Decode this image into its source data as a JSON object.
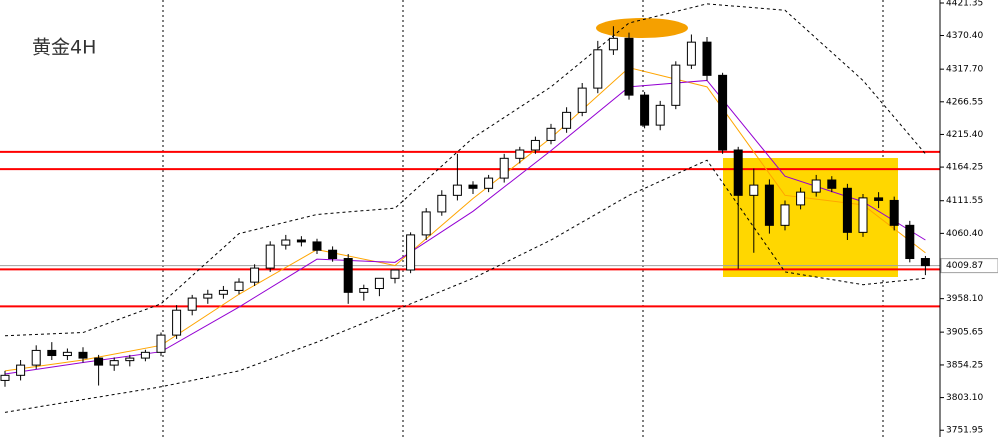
{
  "chart_data": {
    "type": "candlestick",
    "title": "黄金4H",
    "ylim": [
      3741.35,
      4426.05
    ],
    "yticks": [
      4421.35,
      {
        "value": 4370.4,
        "label": "4370.40"
      },
      {
        "value": 4317.7,
        "label": "4317.70"
      },
      4266.55,
      {
        "value": 4215.4,
        "label": "4215.40"
      },
      4164.25,
      4111.55,
      {
        "value": 4060.4,
        "label": "4060.40"
      },
      {
        "value": 3958.1,
        "label": "3958.10"
      },
      3905.65,
      3854.25,
      {
        "value": 3803.1,
        "label": "3803.10"
      },
      3751.95
    ],
    "current_price": 4009.87,
    "levels": [
      4188,
      4161,
      4004,
      3946
    ],
    "level_color": "#ff0000",
    "bull_color": "#ffffff",
    "bear_color": "#000000",
    "open": [
      3830,
      3838,
      3854,
      3877,
      3869,
      3874,
      3865,
      3854,
      3861,
      3865,
      3874,
      3901,
      3940,
      3959,
      3965,
      3971,
      3984,
      4006,
      4042,
      4050,
      4047,
      4034,
      4021,
      3968,
      3974,
      3990,
      4003,
      4058,
      4094,
      4120,
      4136,
      4131,
      4147,
      4178,
      4191,
      4206,
      4225,
      4250,
      4288,
      4348,
      4366,
      4277,
      4230,
      4261,
      4324,
      4360,
      4308,
      4191,
      4120,
      4136,
      4073,
      4105,
      4125,
      4144,
      4131,
      4062,
      4116,
      4112,
      4073,
      4021
    ],
    "high": [
      3845,
      3862,
      3885,
      3890,
      3880,
      3882,
      3870,
      3866,
      3870,
      3878,
      3905,
      3948,
      3964,
      3972,
      3978,
      3990,
      4012,
      4048,
      4058,
      4056,
      4052,
      4040,
      4028,
      3980,
      3985,
      3998,
      4062,
      4100,
      4128,
      4185,
      4142,
      4152,
      4185,
      4196,
      4212,
      4232,
      4258,
      4296,
      4362,
      4385,
      4375,
      4282,
      4268,
      4330,
      4372,
      4368,
      4312,
      4196,
      4162,
      4145,
      4112,
      4132,
      4152,
      4150,
      4138,
      4122,
      4125,
      4118,
      4080,
      4025
    ],
    "low": [
      3820,
      3830,
      3848,
      3862,
      3862,
      3858,
      3822,
      3845,
      3852,
      3860,
      3868,
      3895,
      3932,
      3950,
      3958,
      3965,
      3978,
      4000,
      4035,
      4040,
      4028,
      4016,
      3950,
      3955,
      3962,
      3982,
      3998,
      4050,
      4088,
      4112,
      4122,
      4125,
      4140,
      4170,
      4185,
      4200,
      4218,
      4244,
      4280,
      4340,
      4270,
      4225,
      4222,
      4255,
      4318,
      4300,
      4185,
      4005,
      4030,
      4060,
      4065,
      4098,
      4118,
      4125,
      4050,
      4055,
      4100,
      4065,
      4015,
      3995
    ],
    "close": [
      3838,
      3854,
      3877,
      3869,
      3874,
      3865,
      3854,
      3861,
      3865,
      3874,
      3901,
      3940,
      3959,
      3965,
      3971,
      3984,
      4006,
      4042,
      4050,
      4047,
      4034,
      4021,
      3968,
      3974,
      3990,
      4003,
      4058,
      4094,
      4120,
      4136,
      4131,
      4147,
      4178,
      4191,
      4206,
      4225,
      4250,
      4288,
      4348,
      4366,
      4277,
      4230,
      4261,
      4324,
      4360,
      4308,
      4191,
      4120,
      4136,
      4073,
      4105,
      4125,
      4144,
      4131,
      4062,
      4116,
      4112,
      4073,
      4021,
      4009.87
    ],
    "lines": [
      {
        "color": "#ffa500",
        "dashed": false,
        "x": [
          0,
          5,
          10,
          15,
          20,
          25,
          30,
          35,
          40,
          45,
          50,
          55,
          59
        ],
        "values": [
          3845,
          3862,
          3885,
          3965,
          4035,
          4010,
          4115,
          4210,
          4320,
          4290,
          4120,
          4105,
          4030
        ]
      },
      {
        "color": "#9400d3",
        "dashed": false,
        "x": [
          0,
          5,
          10,
          15,
          20,
          25,
          30,
          35,
          40,
          45,
          50,
          55,
          59
        ],
        "values": [
          3840,
          3858,
          3875,
          3945,
          4020,
          4015,
          4095,
          4190,
          4290,
          4300,
          4150,
          4110,
          4050
        ]
      },
      {
        "color": "#000000",
        "dashed": true,
        "x": [
          0,
          5,
          10,
          15,
          20,
          25,
          30,
          35,
          40,
          45,
          50,
          55,
          59
        ],
        "values": [
          3900,
          3905,
          3950,
          4060,
          4090,
          4100,
          4210,
          4290,
          4390,
          4420,
          4410,
          4300,
          4185
        ]
      },
      {
        "color": "#000000",
        "dashed": true,
        "x": [
          0,
          5,
          10,
          15,
          20,
          25,
          30,
          35,
          40,
          45,
          50,
          55,
          59
        ],
        "values": [
          3780,
          3800,
          3820,
          3845,
          3890,
          3940,
          3990,
          4050,
          4120,
          4175,
          4000,
          3980,
          3990
        ]
      }
    ]
  }
}
